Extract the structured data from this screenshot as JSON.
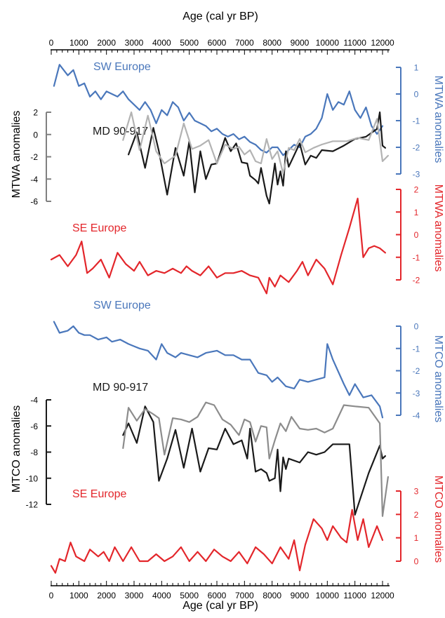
{
  "axis_label": "Age (cal yr BP)",
  "x_ticks": [
    0,
    1000,
    2000,
    3000,
    4000,
    5000,
    6000,
    7000,
    8000,
    9000,
    10000,
    11000,
    12000
  ],
  "colors": {
    "sw": "#4a77bb",
    "se": "#e3262b",
    "md_dark": "#1a1a1a",
    "md_light": "#b3b3b3",
    "md_mid": "#8c8c8c"
  },
  "chart_data": [
    {
      "type": "line",
      "panel": "SW Europe",
      "ylabel": "MTWA anomalies",
      "ylim": [
        -3,
        1
      ],
      "yticks": [
        1,
        0,
        -1,
        -2,
        -3
      ],
      "series": [
        {
          "name": "SW Europe",
          "x": [
            100,
            300,
            600,
            800,
            1000,
            1200,
            1400,
            1600,
            1800,
            2000,
            2200,
            2400,
            2600,
            2800,
            3000,
            3200,
            3400,
            3600,
            3800,
            4000,
            4200,
            4400,
            4600,
            4800,
            5000,
            5200,
            5400,
            5600,
            5800,
            6000,
            6200,
            6400,
            6600,
            6800,
            7000,
            7200,
            7400,
            7600,
            7800,
            8000,
            8200,
            8400,
            8600,
            8800,
            9000,
            9200,
            9400,
            9600,
            9800,
            10000,
            10200,
            10400,
            10600,
            10800,
            11000,
            11200,
            11400,
            11600,
            11800,
            12000
          ],
          "y": [
            0.3,
            1.1,
            0.7,
            0.9,
            0.3,
            0.4,
            -0.1,
            0.1,
            -0.2,
            0.1,
            0,
            -0.1,
            0.1,
            -0.2,
            -0.4,
            -0.6,
            -0.3,
            -0.6,
            -1.1,
            -0.6,
            -0.8,
            -0.3,
            -0.5,
            -1,
            -0.7,
            -1,
            -1.1,
            -1.2,
            -1.4,
            -1.3,
            -1.5,
            -1.6,
            -1.5,
            -1.7,
            -1.6,
            -1.8,
            -1.9,
            -2.1,
            -2.2,
            -2,
            -2,
            -2.3,
            -2.1,
            -1.9,
            -2,
            -1.6,
            -1.5,
            -1.3,
            -0.9,
            0,
            -0.6,
            -0.3,
            -0.4,
            0.1,
            -0.6,
            -0.9,
            -0.5,
            -1.2,
            -1.5,
            -1.2
          ]
        }
      ]
    },
    {
      "type": "line",
      "panel": "MD 90-917",
      "ylabel": "MTWA anomalies",
      "ylim": [
        -6,
        2
      ],
      "yticks": [
        2,
        0,
        -2,
        -4,
        -6
      ],
      "series": [
        {
          "color": "dark",
          "x": [
            2800,
            3100,
            3400,
            3700,
            3900,
            4200,
            4500,
            4800,
            5000,
            5200,
            5400,
            5600,
            5800,
            6000,
            6300,
            6500,
            6700,
            6900,
            7100,
            7200,
            7400,
            7500,
            7600,
            7800,
            7900,
            8100,
            8200,
            8300,
            8400,
            8500,
            8600,
            9000,
            9200,
            9400,
            9600,
            9800,
            10200,
            10600,
            11000,
            11400,
            11800,
            11900,
            12000,
            12100
          ],
          "y": [
            -1.8,
            0.2,
            -3,
            0.6,
            -1.5,
            -5.4,
            -1.2,
            -3.7,
            -0.6,
            -5.2,
            -1.5,
            -4,
            -2.7,
            -2.6,
            -0.3,
            -1.5,
            -0.8,
            -2.5,
            -2.6,
            -3.7,
            -4.1,
            -4.4,
            -3,
            -5.5,
            -6.2,
            -2.6,
            -4.5,
            -3.3,
            -4.6,
            -1.5,
            -2.9,
            -0.8,
            -2.7,
            -1.9,
            -2.1,
            -1.4,
            -1.5,
            -1,
            -0.4,
            -0.2,
            0.5,
            2,
            -1,
            -1.2
          ]
        },
        {
          "color": "light",
          "x": [
            2600,
            2900,
            3200,
            3500,
            3800,
            4100,
            4500,
            4800,
            5100,
            5400,
            5700,
            6000,
            6300,
            6600,
            6800,
            7000,
            7200,
            7400,
            7600,
            7800,
            8000,
            8200,
            8400,
            8600,
            8800,
            9000,
            9200,
            9500,
            9800,
            10200,
            10700,
            11100,
            11500,
            11800,
            12000,
            12200
          ],
          "y": [
            -0.5,
            2,
            -1.4,
            1.7,
            -1.5,
            -2.6,
            -1.9,
            1,
            -1.3,
            -1,
            -0.5,
            -2.6,
            -0.9,
            -1.3,
            -1.1,
            -1.8,
            -1.4,
            -2.4,
            -2.6,
            -0.4,
            -2.2,
            -1.5,
            -3.5,
            -1.2,
            -1.4,
            -0.4,
            -1.6,
            -1.2,
            -0.9,
            -0.6,
            -0.6,
            -0.3,
            -0.5,
            1.4,
            -2.4,
            -1.9
          ]
        }
      ]
    },
    {
      "type": "line",
      "panel": "SE Europe",
      "ylabel": "MTWA anomalies",
      "ylim": [
        -3,
        2
      ],
      "yticks": [
        2,
        1,
        0,
        -1,
        -2
      ],
      "series": [
        {
          "name": "SE Europe",
          "x": [
            0,
            300,
            600,
            900,
            1100,
            1300,
            1500,
            1800,
            2100,
            2400,
            2700,
            3000,
            3200,
            3500,
            3800,
            4100,
            4400,
            4700,
            4900,
            5100,
            5400,
            5700,
            6000,
            6300,
            6600,
            6900,
            7200,
            7500,
            7800,
            7900,
            8100,
            8300,
            8600,
            8900,
            9100,
            9300,
            9600,
            9900,
            10200,
            10500,
            10800,
            11100,
            11300,
            11500,
            11700,
            11900,
            12100
          ],
          "y": [
            -1.1,
            -0.9,
            -1.4,
            -0.9,
            -0.3,
            -1.7,
            -1.5,
            -1.1,
            -1.9,
            -0.8,
            -1.3,
            -1.6,
            -1.2,
            -1.8,
            -1.6,
            -1.7,
            -1.5,
            -1.7,
            -1.4,
            -1.6,
            -1.8,
            -1.4,
            -1.9,
            -1.7,
            -1.7,
            -1.6,
            -1.8,
            -1.9,
            -2.6,
            -1.9,
            -2.3,
            -1.8,
            -2.1,
            -1.6,
            -1.2,
            -1.8,
            -1.1,
            -1.5,
            -2.2,
            -0.9,
            0.3,
            1.6,
            -1,
            -0.6,
            -0.5,
            -0.6,
            -0.8
          ]
        }
      ]
    },
    {
      "type": "line",
      "panel": "SW Europe",
      "ylabel": "MTCO anomalies",
      "ylim": [
        -4,
        0
      ],
      "yticks": [
        0,
        -1,
        -2,
        -3,
        -4
      ],
      "series": [
        {
          "name": "SW Europe",
          "x": [
            100,
            300,
            600,
            800,
            1000,
            1200,
            1400,
            1700,
            2000,
            2200,
            2500,
            2800,
            3000,
            3200,
            3500,
            3800,
            4000,
            4200,
            4500,
            4700,
            5000,
            5300,
            5600,
            6000,
            6300,
            6600,
            6900,
            7200,
            7500,
            7800,
            8000,
            8200,
            8500,
            8800,
            9000,
            9300,
            9600,
            9900,
            10000,
            10200,
            10600,
            10800,
            11000,
            11300,
            11600,
            11900,
            12000
          ],
          "y": [
            0.2,
            -0.3,
            -0.2,
            0,
            -0.3,
            -0.4,
            -0.4,
            -0.6,
            -0.5,
            -0.7,
            -0.6,
            -0.8,
            -0.9,
            -1,
            -1.1,
            -1.5,
            -0.8,
            -1.2,
            -1.4,
            -1.2,
            -1.3,
            -1.4,
            -1.2,
            -1.1,
            -1.3,
            -1.3,
            -1.5,
            -1.5,
            -2.1,
            -2.2,
            -2.5,
            -2.3,
            -2.7,
            -2.8,
            -2.4,
            -2.5,
            -2.4,
            -2.3,
            -0.8,
            -1.5,
            -2.6,
            -3.1,
            -2.6,
            -3.2,
            -3.1,
            -3.6,
            -4.1
          ]
        }
      ]
    },
    {
      "type": "line",
      "panel": "MD 90-917",
      "ylabel": "MTCO anomalies",
      "ylim": [
        -13,
        -4
      ],
      "yticks": [
        -4,
        -6,
        -8,
        -10,
        -12
      ],
      "series": [
        {
          "color": "dark",
          "x": [
            2600,
            2800,
            3100,
            3400,
            3700,
            3900,
            4200,
            4500,
            4800,
            5100,
            5400,
            5700,
            6000,
            6300,
            6600,
            6900,
            7100,
            7200,
            7400,
            7600,
            7800,
            7900,
            8100,
            8200,
            8300,
            8400,
            8500,
            8600,
            9000,
            9300,
            9600,
            9900,
            10200,
            10500,
            10800,
            11000,
            11500,
            11900,
            12000,
            12100
          ],
          "y": [
            -6.7,
            -5.8,
            -7.3,
            -4.5,
            -5.7,
            -10.2,
            -8.5,
            -6.3,
            -9.2,
            -6.2,
            -9.5,
            -7.7,
            -7.8,
            -6.2,
            -7.4,
            -7.1,
            -8.5,
            -6.2,
            -9.5,
            -9.3,
            -9.6,
            -10.2,
            -10,
            -7.8,
            -11,
            -8.4,
            -9.3,
            -8.5,
            -8.8,
            -8,
            -8.2,
            -8,
            -7.4,
            -7.4,
            -7.4,
            -12.8,
            -9.6,
            -7.5,
            -8.5,
            -8.3
          ]
        },
        {
          "color": "mid",
          "x": [
            2600,
            2800,
            3100,
            3400,
            3700,
            3900,
            4100,
            4400,
            4700,
            5000,
            5300,
            5600,
            5900,
            6200,
            6500,
            6800,
            7000,
            7200,
            7400,
            7600,
            7800,
            7900,
            8100,
            8300,
            8500,
            8700,
            9000,
            9300,
            9600,
            9900,
            10200,
            10600,
            11000,
            11500,
            11900,
            12000,
            12200
          ],
          "y": [
            -7.7,
            -4.6,
            -5.6,
            -4.7,
            -5.1,
            -5.4,
            -8.2,
            -5.4,
            -5.5,
            -5.7,
            -5.3,
            -4.2,
            -4.4,
            -5.5,
            -5.9,
            -6.7,
            -5.5,
            -5.7,
            -7.2,
            -6,
            -6.1,
            -8.5,
            -7.1,
            -5.8,
            -6.4,
            -5.3,
            -6.2,
            -6.3,
            -6.2,
            -6.5,
            -6.2,
            -4.4,
            -4.5,
            -4.6,
            -5.8,
            -12.9,
            -9.9
          ]
        }
      ]
    },
    {
      "type": "line",
      "panel": "SE Europe",
      "ylabel": "MTCO anomalies",
      "ylim": [
        -0.5,
        3
      ],
      "yticks": [
        3,
        2,
        1,
        0
      ],
      "series": [
        {
          "name": "SE Europe",
          "x": [
            0,
            150,
            300,
            500,
            700,
            900,
            1200,
            1400,
            1700,
            1900,
            2100,
            2300,
            2600,
            2900,
            3200,
            3500,
            3800,
            4100,
            4400,
            4700,
            5000,
            5300,
            5600,
            5900,
            6200,
            6500,
            6800,
            7100,
            7400,
            7700,
            8000,
            8300,
            8600,
            8800,
            9000,
            9200,
            9500,
            9800,
            10000,
            10200,
            10500,
            10700,
            10900,
            11100,
            11300,
            11500,
            11800,
            12000
          ],
          "y": [
            -0.2,
            -0.5,
            0.1,
            0,
            0.8,
            0.2,
            0,
            0.5,
            0.2,
            0.4,
            0,
            0.6,
            0,
            0.6,
            0,
            0,
            0.3,
            0,
            0.2,
            0.6,
            0,
            0.4,
            0,
            0.5,
            0.2,
            0,
            0.4,
            -0.1,
            0.6,
            0.3,
            -0.1,
            0.6,
            0.1,
            0.9,
            -0.4,
            0.7,
            1.8,
            1.4,
            0.9,
            1.5,
            1,
            0.8,
            2.2,
            0.9,
            1.8,
            0.6,
            1.5,
            0.9
          ]
        }
      ]
    }
  ],
  "labels": {
    "sw_top": "SW Europe",
    "md_top": "MD 90-917",
    "se_top": "SE Europe",
    "sw_bot": "SW Europe",
    "md_bot": "MD 90-917",
    "se_bot": "SE Europe",
    "y_sw_top": "MTWA anomalies",
    "y_md_top": "MTWA anomalies",
    "y_se_top": "MTWA anomalies",
    "y_sw_bot": "MTCO anomalies",
    "y_md_bot": "MTCO anomalies",
    "y_se_bot": "MTCO anomalies"
  }
}
